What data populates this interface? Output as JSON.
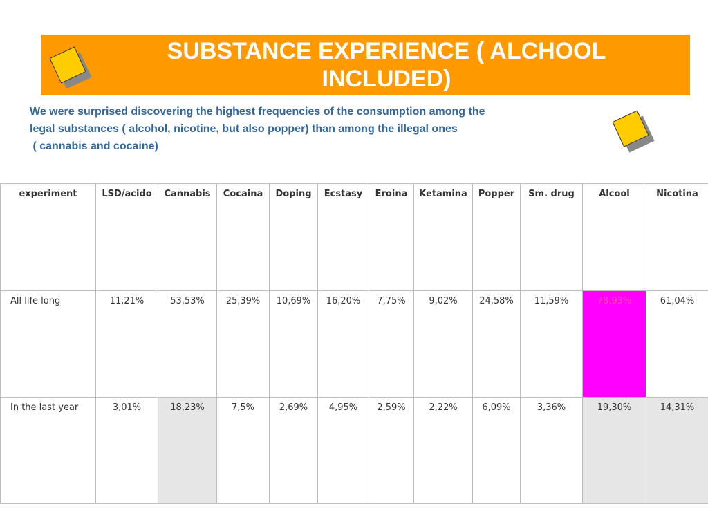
{
  "title": "SUBSTANCE EXPERIENCE ( ALCHOOL INCLUDED)",
  "subtitle": {
    "line1": "We were surprised discovering the highest frequencies of the consumption among the",
    "line2": "legal substances ( alcohol, nicotine, but also popper) than among the illegal ones",
    "line3": " ( cannabis and cocaine)"
  },
  "colors": {
    "banner": "#ff9900",
    "subtitle_text": "#336699",
    "highlight_cell": "#ff00ff",
    "shaded_cell": "#e6e6e6",
    "deco_square": "#ffcc00"
  },
  "icons": [
    "yellow-square-icon",
    "yellow-square-icon",
    "yellow-square-icon"
  ],
  "table": {
    "headers": [
      "experiment",
      "LSD/acido",
      "Cannabis",
      "Cocaina",
      "Doping",
      "Ecstasy",
      "Eroina",
      "Ketamina",
      "Popper",
      "Sm. drug",
      "Alcool",
      "Nicotina"
    ],
    "rows": [
      {
        "label": "All life long",
        "values": [
          "11,21%",
          "53,53%",
          "25,39%",
          "10,69%",
          "16,20%",
          "7,75%",
          "9,02%",
          "24,58%",
          "11,59%",
          "78,93%",
          "61,04%"
        ]
      },
      {
        "label": "In the last year",
        "values": [
          "3,01%",
          "18,23%",
          "7,5%",
          "2,69%",
          "4,95%",
          "2,59%",
          "2,22%",
          "6,09%",
          "3,36%",
          "19,30%",
          "14,31%"
        ]
      }
    ]
  }
}
